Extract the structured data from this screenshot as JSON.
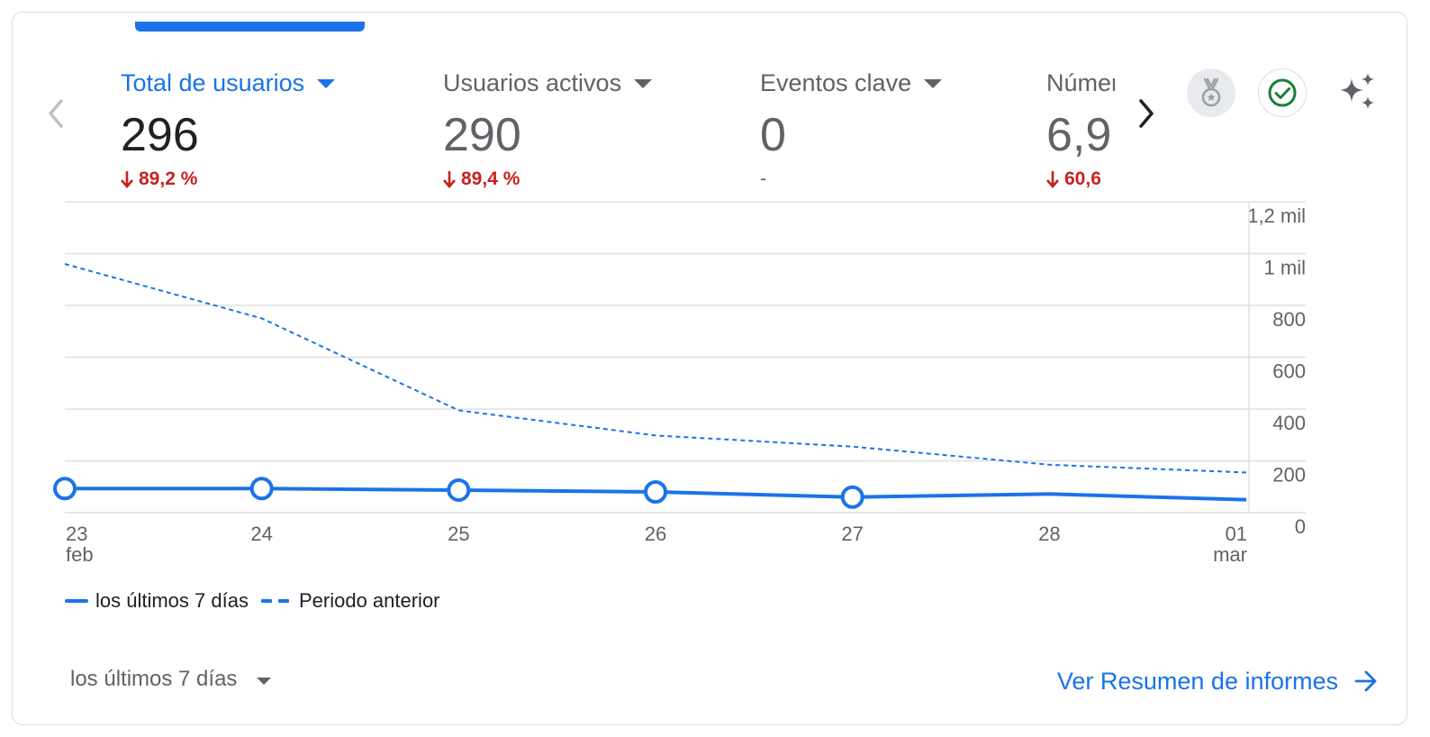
{
  "metrics": [
    {
      "title": "Total de usuarios",
      "value": "296",
      "change": "89,2 %",
      "trend": "down",
      "active": true
    },
    {
      "title": "Usuarios activos",
      "value": "290",
      "change": "89,4 %",
      "trend": "down",
      "active": false
    },
    {
      "title": "Eventos clave",
      "value": "0",
      "change": "-",
      "trend": "none",
      "active": false
    },
    {
      "title": "Número de eventos",
      "value": "6,9",
      "change": "60,6",
      "trend": "down",
      "active": false
    }
  ],
  "icons": {
    "prev": "chevron-left-icon",
    "next": "chevron-right-icon",
    "badge": "medal-icon",
    "check": "check-circle-icon",
    "insights": "sparkle-icon"
  },
  "colors": {
    "accent": "#1a73e8",
    "negative": "#c5221f",
    "check": "#188038",
    "grid": "#e0e0e0",
    "muted": "#5f6368"
  },
  "chart_data": {
    "type": "line",
    "x": [
      "23 feb",
      "24",
      "25",
      "26",
      "27",
      "28",
      "01 mar"
    ],
    "x_tick_labels": [
      {
        "day": "23",
        "month": "feb"
      },
      {
        "day": "24",
        "month": ""
      },
      {
        "day": "25",
        "month": ""
      },
      {
        "day": "26",
        "month": ""
      },
      {
        "day": "27",
        "month": ""
      },
      {
        "day": "28",
        "month": ""
      },
      {
        "day": "01",
        "month": "mar"
      }
    ],
    "y_ticks": [
      0,
      200,
      400,
      600,
      800,
      1000,
      1200
    ],
    "y_tick_labels": [
      "0",
      "200",
      "400",
      "600",
      "800",
      "1 mil",
      "1,2 mil"
    ],
    "ylim": [
      0,
      1200
    ],
    "grid": true,
    "y_axis_position": "right",
    "series": [
      {
        "name": "los últimos 7 días",
        "style": "solid",
        "values": [
          93,
          93,
          87,
          80,
          60,
          72,
          50
        ],
        "markers": [
          0,
          1,
          2,
          3,
          4
        ]
      },
      {
        "name": "Periodo anterior",
        "style": "dashed",
        "values": [
          960,
          750,
          395,
          298,
          255,
          185,
          155
        ]
      }
    ]
  },
  "legend": {
    "current": "los últimos 7 días",
    "previous": "Periodo anterior"
  },
  "footer": {
    "period": "los últimos 7 días",
    "link": "Ver Resumen de informes"
  }
}
